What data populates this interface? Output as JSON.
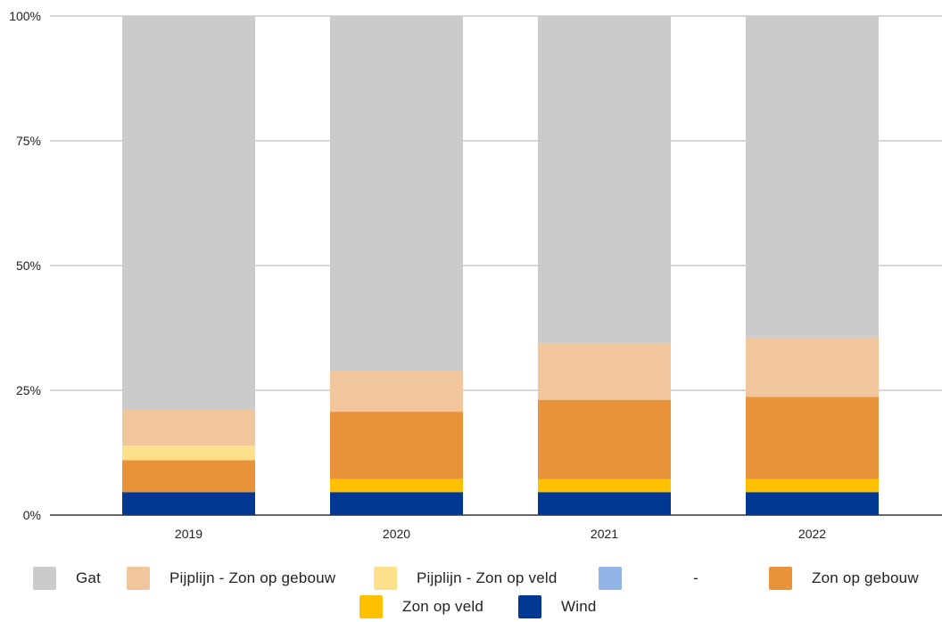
{
  "chart_data": {
    "type": "bar",
    "stacked": true,
    "percent": true,
    "categories": [
      "2019",
      "2020",
      "2021",
      "2022"
    ],
    "ylim": [
      0,
      100
    ],
    "yticks": [
      "0%",
      "25%",
      "50%",
      "75%",
      "100%"
    ],
    "ytick_values": [
      0,
      25,
      50,
      75,
      100
    ],
    "grid": true,
    "legend_position": "bottom",
    "series": [
      {
        "name": "Wind",
        "color": "#003893",
        "values": [
          4.6,
          4.6,
          4.6,
          4.6
        ]
      },
      {
        "name": "Zon op veld",
        "color": "#ffc000",
        "values": [
          0,
          2.6,
          2.6,
          2.6
        ]
      },
      {
        "name": "Zon op gebouw",
        "color": "#e8923a",
        "values": [
          6.4,
          13.5,
          15.9,
          16.5
        ]
      },
      {
        "name": "-",
        "color": "#93b4e6",
        "values": [
          0,
          0,
          0,
          0
        ]
      },
      {
        "name": "Pijplijn - Zon op veld",
        "color": "#ffe08a",
        "values": [
          2.9,
          0,
          0,
          0
        ]
      },
      {
        "name": "Pijplijn - Zon op gebouw",
        "color": "#f2c69c",
        "values": [
          7.2,
          8.2,
          11.4,
          11.9
        ]
      },
      {
        "name": "Gat",
        "color": "#cbcbcb",
        "values": [
          78.9,
          71.1,
          65.5,
          64.4
        ]
      }
    ],
    "legend_order": [
      [
        "Gat",
        "Pijplijn - Zon op gebouw",
        "Pijplijn - Zon op veld",
        "-",
        "Zon op gebouw"
      ],
      [
        "Zon op veld",
        "Wind"
      ]
    ]
  }
}
